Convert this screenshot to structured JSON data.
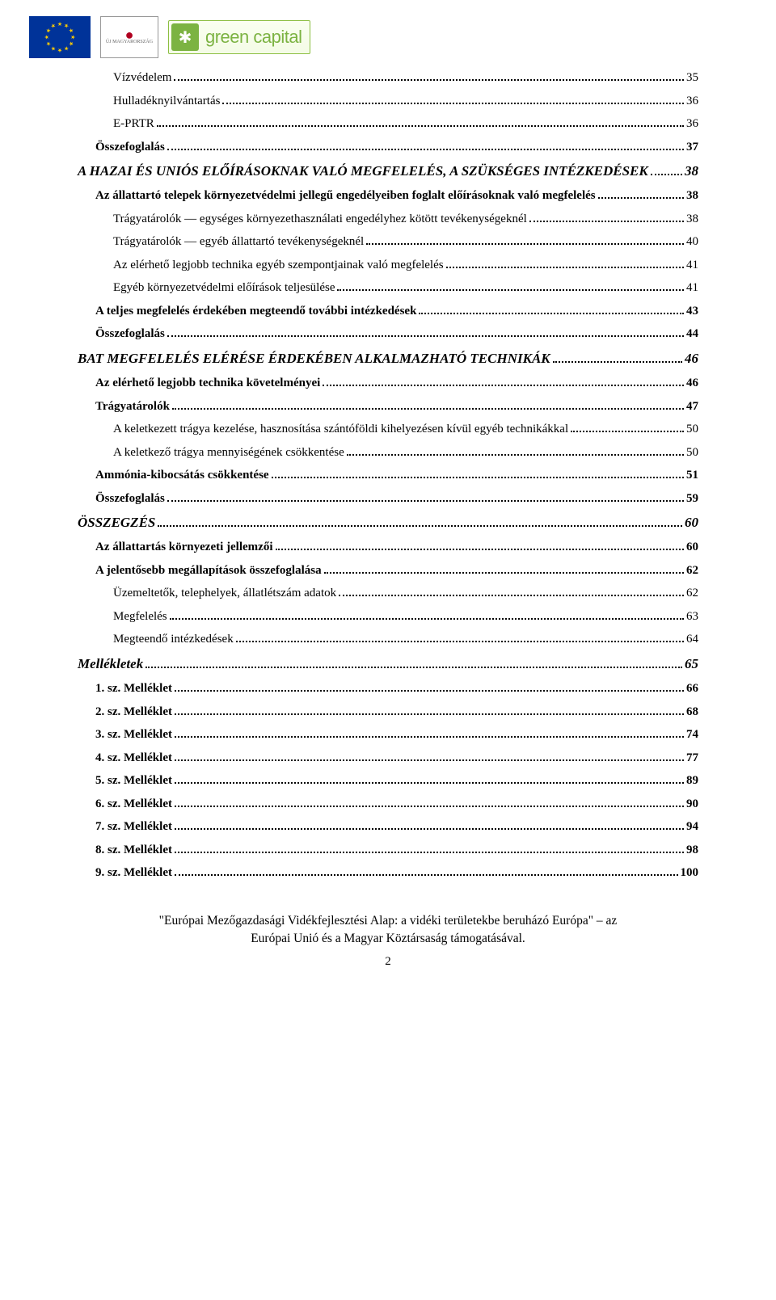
{
  "logos": {
    "green_capital_text": "green capital",
    "mo_text": "ÚJ MAGYARORSZÁG"
  },
  "toc": [
    {
      "label": "Vízvédelem",
      "page": "35",
      "style": "",
      "indent": 2
    },
    {
      "label": "Hulladéknyilvántartás",
      "page": "36",
      "style": "",
      "indent": 2
    },
    {
      "label": "E-PRTR",
      "page": "36",
      "style": "",
      "indent": 2
    },
    {
      "label": "Összefoglalás",
      "page": " 37",
      "style": "bold",
      "indent": 1
    },
    {
      "label": "A HAZAI ÉS UNIÓS ELŐÍRÁSOKNAK VALÓ MEGFELELÉS, A SZÜKSÉGES INTÉZKEDÉSEK",
      "page": " 38",
      "style": "bold italic h1",
      "indent": 0
    },
    {
      "label": "Az állattartó telepek környezetvédelmi jellegű engedélyeiben foglalt előírásoknak való megfelelés",
      "page": " 38",
      "style": "bold",
      "indent": 1
    },
    {
      "label": "Trágyatárolók ― egységes környezethasználati engedélyhez kötött tevékenységeknél",
      "page": "38",
      "style": "",
      "indent": 2
    },
    {
      "label": "Trágyatárolók ― egyéb állattartó tevékenységeknél",
      "page": "40",
      "style": "",
      "indent": 2
    },
    {
      "label": "Az elérhető legjobb technika egyéb szempontjainak való megfelelés",
      "page": "41",
      "style": "",
      "indent": 2
    },
    {
      "label": "Egyéb környezetvédelmi előírások teljesülése",
      "page": "41",
      "style": "",
      "indent": 2
    },
    {
      "label": "A teljes megfelelés érdekében megteendő további intézkedések",
      "page": " 43",
      "style": "bold",
      "indent": 1
    },
    {
      "label": "Összefoglalás",
      "page": " 44",
      "style": "bold",
      "indent": 1
    },
    {
      "label": "BAT MEGFELELÉS ELÉRÉSE ÉRDEKÉBEN ALKALMAZHATÓ TECHNIKÁK",
      "page": " 46",
      "style": "bold italic h1",
      "indent": 0
    },
    {
      "label": "Az elérhető legjobb technika követelményei",
      "page": " 46",
      "style": "bold",
      "indent": 1
    },
    {
      "label": "Trágyatárolók",
      "page": " 47",
      "style": "bold",
      "indent": 1
    },
    {
      "label": "A keletkezett trágya kezelése, hasznosítása szántóföldi kihelyezésen kívül egyéb technikákkal",
      "page": "50",
      "style": "",
      "indent": 2
    },
    {
      "label": "A keletkező trágya mennyiségének csökkentése",
      "page": "50",
      "style": "",
      "indent": 2
    },
    {
      "label": "Ammónia-kibocsátás csökkentése",
      "page": " 51",
      "style": "bold",
      "indent": 1
    },
    {
      "label": "Összefoglalás",
      "page": " 59",
      "style": "bold",
      "indent": 1
    },
    {
      "label": "ÖSSZEGZÉS",
      "page": " 60",
      "style": "bold italic h1",
      "indent": 0
    },
    {
      "label": "Az állattartás környezeti jellemzői",
      "page": " 60",
      "style": "bold",
      "indent": 1
    },
    {
      "label": "A jelentősebb megállapítások összefoglalása",
      "page": " 62",
      "style": "bold",
      "indent": 1
    },
    {
      "label": "Üzemeltetők, telephelyek, állatlétszám adatok",
      "page": "62",
      "style": "",
      "indent": 2
    },
    {
      "label": "Megfelelés",
      "page": "63",
      "style": "",
      "indent": 2
    },
    {
      "label": "Megteendő intézkedések",
      "page": "64",
      "style": "",
      "indent": 2
    },
    {
      "label": "Mellékletek",
      "page": " 65",
      "style": "bold italic h1",
      "indent": 0
    },
    {
      "label": "1. sz. Melléklet",
      "page": " 66",
      "style": "bold",
      "indent": 1
    },
    {
      "label": "2. sz. Melléklet",
      "page": " 68",
      "style": "bold",
      "indent": 1
    },
    {
      "label": "3. sz. Melléklet",
      "page": " 74",
      "style": "bold",
      "indent": 1
    },
    {
      "label": "4. sz. Melléklet",
      "page": " 77",
      "style": "bold",
      "indent": 1
    },
    {
      "label": "5. sz. Melléklet",
      "page": " 89",
      "style": "bold",
      "indent": 1
    },
    {
      "label": "6. sz. Melléklet",
      "page": " 90",
      "style": "bold",
      "indent": 1
    },
    {
      "label": "7. sz. Melléklet",
      "page": " 94",
      "style": "bold",
      "indent": 1
    },
    {
      "label": "8. sz. Melléklet",
      "page": " 98",
      "style": "bold",
      "indent": 1
    },
    {
      "label": "9. sz. Melléklet",
      "page": " 100",
      "style": "bold",
      "indent": 1
    }
  ],
  "footer": {
    "line1": "\"Európai Mezőgazdasági Vidékfejlesztési Alap: a vidéki területekbe beruházó Európa\" – az",
    "line2": "Európai Unió és a Magyar Köztársaság támogatásával.",
    "page_number": "2"
  }
}
